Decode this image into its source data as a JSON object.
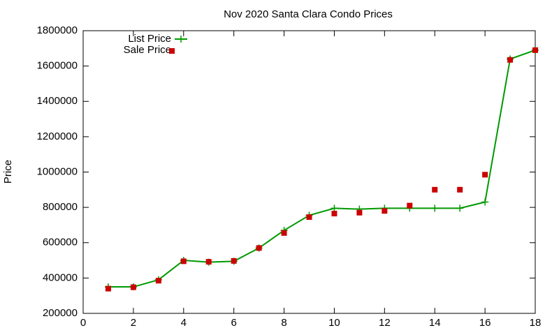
{
  "chart_data": {
    "type": "line",
    "title": "Nov 2020 Santa Clara Condo Prices",
    "y_label": "Price",
    "x": [
      1,
      2,
      3,
      4,
      5,
      6,
      7,
      8,
      9,
      10,
      11,
      12,
      13,
      14,
      15,
      16,
      17,
      18
    ],
    "series": [
      {
        "name": "List Price",
        "color": "#009900",
        "style": "line-points",
        "values": [
          350000,
          350000,
          390000,
          500000,
          490000,
          495000,
          570000,
          670000,
          755000,
          795000,
          790000,
          795000,
          795000,
          795000,
          795000,
          830000,
          1640000,
          1690000
        ]
      },
      {
        "name": "Sale Price",
        "color": "#cc0000",
        "style": "points",
        "values": [
          340000,
          348000,
          385000,
          495000,
          492000,
          497000,
          570000,
          655000,
          745000,
          765000,
          770000,
          780000,
          810000,
          900000,
          900000,
          985000,
          1635000,
          1690000
        ]
      }
    ],
    "xlim": [
      0,
      18
    ],
    "xticks": [
      0,
      2,
      4,
      6,
      8,
      10,
      12,
      14,
      16,
      18
    ],
    "ylim": [
      200000,
      1800000
    ],
    "yticks": [
      200000,
      400000,
      600000,
      800000,
      1000000,
      1200000,
      1400000,
      1600000,
      1800000
    ],
    "grid": false,
    "legend": "top-left"
  }
}
